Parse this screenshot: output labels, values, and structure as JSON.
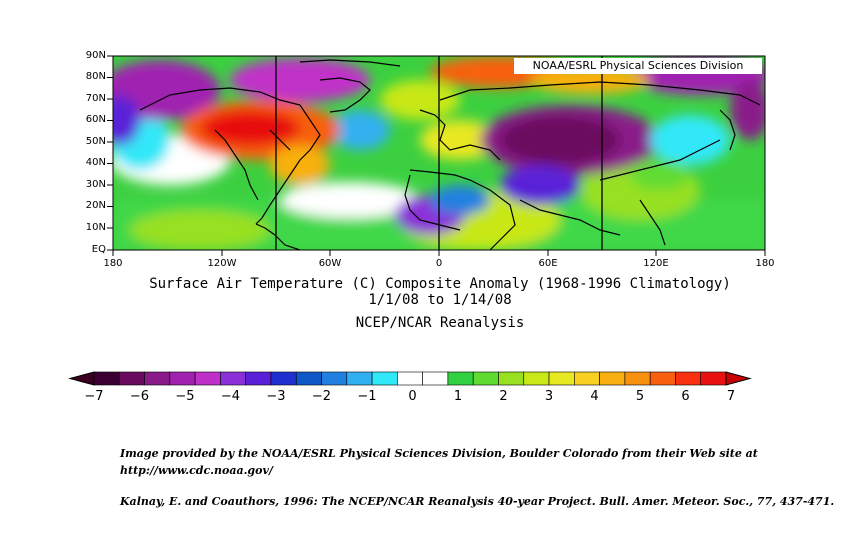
{
  "map": {
    "region": "Northern Hemisphere 0-90N, 180-180",
    "credit": "NOAA/ESRL Physical Sciences Division",
    "lat_labels": [
      "90N",
      "80N",
      "70N",
      "60N",
      "50N",
      "40N",
      "30N",
      "20N",
      "10N",
      "EQ"
    ],
    "lon_labels": [
      "180",
      "120W",
      "60W",
      "0",
      "60E",
      "120E",
      "180"
    ],
    "meridian_lines": [
      "90W",
      "0",
      "90E"
    ],
    "anomaly_regions": [
      {
        "name": "North America / Canada",
        "anomaly_c": 5
      },
      {
        "name": "Siberia / Central Asia",
        "anomaly_c": -6
      },
      {
        "name": "Arctic Ocean north of Europe",
        "anomaly_c": 5
      },
      {
        "name": "West Africa",
        "anomaly_c": -4
      },
      {
        "name": "Alaska",
        "anomaly_c": -4
      },
      {
        "name": "Eastern North Pacific",
        "anomaly_c": -1
      }
    ]
  },
  "title": {
    "line1": "Surface Air Temperature (C) Composite Anomaly (1968-1996 Climatology)",
    "line2": "1/1/08  to 1/14/08",
    "line3": "NCEP/NCAR Reanalysis"
  },
  "colorbar": {
    "labels": [
      "−7",
      "−6",
      "−5",
      "−4",
      "−3",
      "−2",
      "−1",
      "0",
      "1",
      "2",
      "3",
      "4",
      "5",
      "6",
      "7"
    ],
    "colors": [
      "#3a0032",
      "#6a0a5e",
      "#8a1a8a",
      "#a020b0",
      "#c030c8",
      "#8a30d8",
      "#5a20d8",
      "#2030d0",
      "#1058c8",
      "#2080e0",
      "#30b0f0",
      "#30e8f8",
      "#ffffff",
      "#ffffff",
      "#30d040",
      "#60dc30",
      "#98e020",
      "#c8e818",
      "#e8e820",
      "#f8d020",
      "#f8b010",
      "#f89010",
      "#f86010",
      "#f83010",
      "#e81010"
    ],
    "arrow_left": "#3a0020",
    "arrow_right": "#c80000"
  },
  "footer": {
    "line1": "Image provided by the NOAA/ESRL Physical Sciences Division, Boulder Colorado from their Web site at",
    "line2": "http://www.cdc.noaa.gov/",
    "line3": "Kalnay, E. and Coauthors, 1996: The NCEP/NCAR Reanalysis 40-year Project. Bull. Amer. Meteor. Soc., 77, 437-471."
  }
}
